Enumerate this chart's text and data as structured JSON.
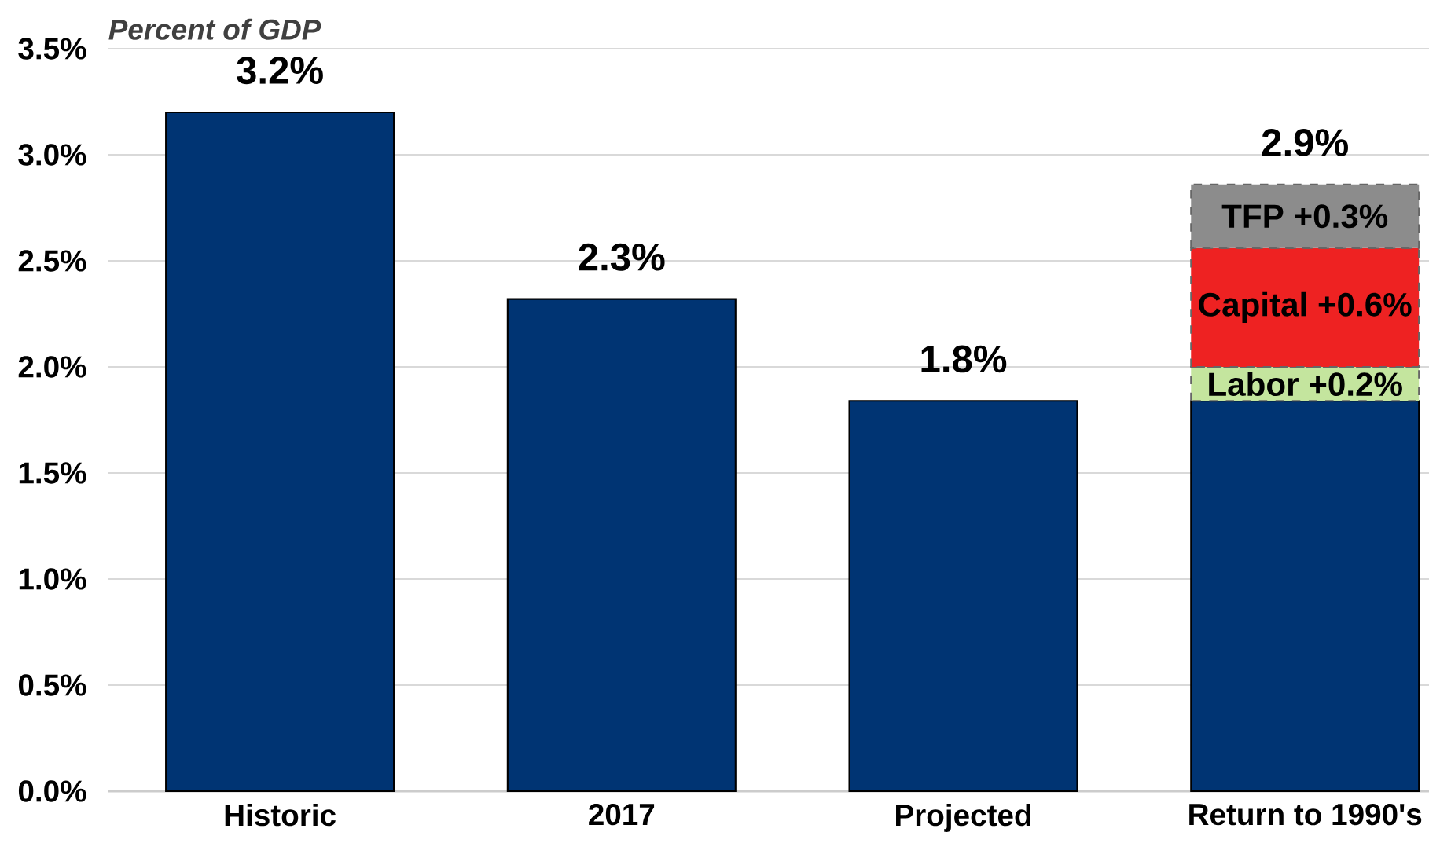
{
  "chart_data": {
    "type": "bar",
    "ylabel": "*Percent of GDP*",
    "categories": [
      "Historic",
      "2017",
      "Projected",
      "Return to 1990's"
    ],
    "stacked": true,
    "grid": "y",
    "ylim": [
      0,
      3.5
    ],
    "yticks": [
      {
        "value": 0,
        "label": "0.0%"
      },
      {
        "value": 0.5,
        "label": "0.5%"
      },
      {
        "value": 1,
        "label": "1.0%"
      },
      {
        "value": 1.5,
        "label": "1.5%"
      },
      {
        "value": 2,
        "label": "2.0%"
      },
      {
        "value": 2.5,
        "label": "2.5%"
      },
      {
        "value": 3,
        "label": "3.0%"
      },
      {
        "value": 3.5,
        "label": "3.5%"
      }
    ],
    "series": [
      {
        "color": "#003473",
        "line_style": "solid",
        "values": [
          3.2,
          2.32,
          1.84,
          1.84
        ],
        "value_labels": [
          "3.2%",
          "2.3%",
          "1.8%",
          null
        ]
      },
      {
        "color": "#c4e59e",
        "line_style": "dashed",
        "values": [
          null,
          null,
          null,
          0.16
        ],
        "value_labels": [
          null,
          null,
          null,
          "Labor +0.2%"
        ]
      },
      {
        "color": "#ee2222",
        "line_style": "dashed",
        "values": [
          null,
          null,
          null,
          0.56
        ],
        "value_labels": [
          null,
          null,
          null,
          "Capital +0.6%"
        ]
      },
      {
        "color": "#8c8c8c",
        "line_style": "dashed",
        "values": [
          null,
          null,
          null,
          0.3
        ],
        "value_labels": [
          null,
          null,
          null,
          "TFP +0.3%"
        ]
      }
    ],
    "totals": [
      null,
      null,
      null,
      "2.9%"
    ]
  }
}
